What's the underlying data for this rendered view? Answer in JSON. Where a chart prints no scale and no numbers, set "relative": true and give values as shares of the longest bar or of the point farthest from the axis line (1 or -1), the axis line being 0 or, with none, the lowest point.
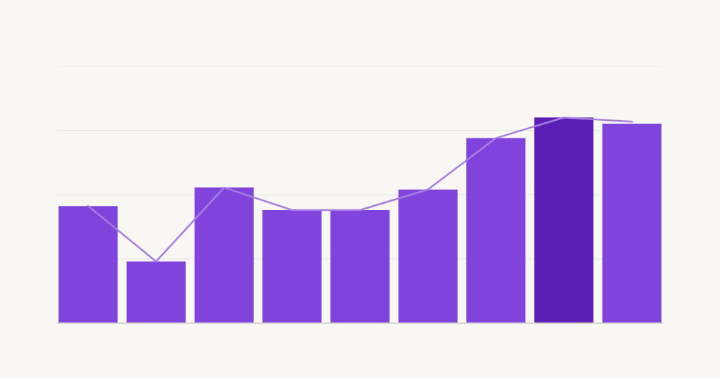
{
  "chart_data": [
    {
      "type": "bar",
      "relative": true,
      "categories": [
        null,
        null,
        null,
        null,
        null,
        null,
        null,
        null,
        null
      ],
      "colors": [
        "#8044dd",
        "#8044dd",
        "#8044dd",
        "#8044dd",
        "#8044dd",
        "#8044dd",
        "#8044dd",
        "#5b1fb5",
        "#8044dd"
      ],
      "values": [
        0.57,
        0.3,
        0.66,
        0.55,
        0.55,
        0.65,
        0.9,
        1,
        0.97
      ],
      "grid": "y",
      "tick_labels": false
    },
    {
      "type": "line",
      "relative": true,
      "categories": [
        null,
        null,
        null,
        null,
        null,
        null,
        null,
        null,
        null
      ],
      "color": "#a67ee0",
      "values": [
        0.57,
        0.3,
        0.66,
        0.55,
        0.55,
        0.65,
        0.9,
        1,
        0.98
      ],
      "tick_labels": false
    }
  ]
}
